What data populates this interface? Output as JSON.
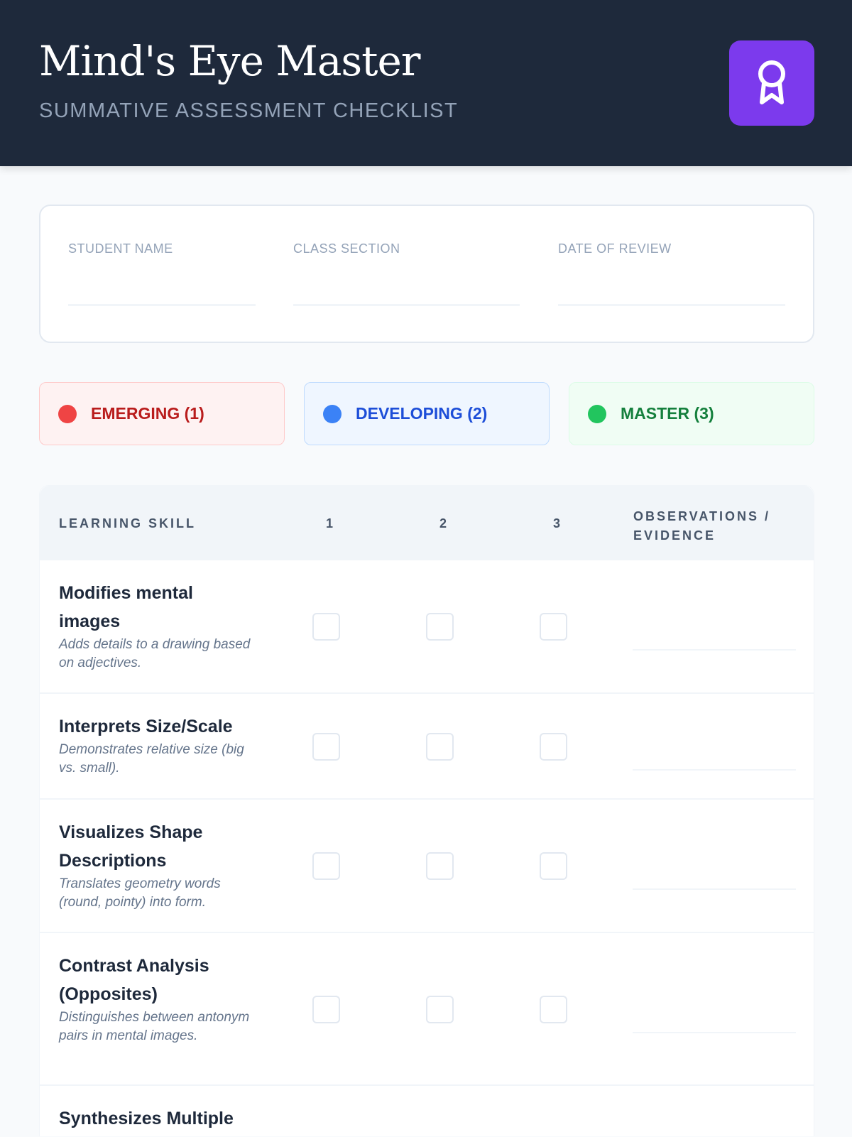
{
  "header": {
    "title": "Mind's Eye Master",
    "subtitle": "SUMMATIVE ASSESSMENT CHECKLIST",
    "badge_icon": "award-ribbon-icon",
    "accent": "#7c3aed"
  },
  "info": {
    "fields": [
      {
        "label": "STUDENT NAME",
        "value": ""
      },
      {
        "label": "CLASS SECTION",
        "value": ""
      },
      {
        "label": "DATE OF REVIEW",
        "value": ""
      }
    ]
  },
  "legend": [
    {
      "label": "EMERGING (1)",
      "color": "#ef4444",
      "text": "#b91c1c",
      "bg": "#fef2f2",
      "border": "#fecaca"
    },
    {
      "label": "DEVELOPING (2)",
      "color": "#3b82f6",
      "text": "#1d4ed8",
      "bg": "#eff6ff",
      "border": "#bfdbfe"
    },
    {
      "label": "MASTER (3)",
      "color": "#22c55e",
      "text": "#15803d",
      "bg": "#f0fdf4",
      "border": "#dcfce7"
    }
  ],
  "table": {
    "headers": {
      "skill": "LEARNING SKILL",
      "c1": "1",
      "c2": "2",
      "c3": "3",
      "obs_line1": "OBSERVATIONS /",
      "obs_line2": "EVIDENCE"
    },
    "rows": [
      {
        "name": "Modifies mental images",
        "desc": "Adds details to a drawing based on adjectives.",
        "checked": [
          false,
          false,
          false
        ]
      },
      {
        "name": "Interprets Size/Scale",
        "desc": "Demonstrates relative size (big vs. small).",
        "checked": [
          false,
          false,
          false
        ]
      },
      {
        "name": "Visualizes Shape Descriptions",
        "desc": "Translates geometry words (round, pointy) into form.",
        "checked": [
          false,
          false,
          false
        ]
      },
      {
        "name": "Contrast Analysis (Opposites)",
        "desc": "Distinguishes between antonym pairs in mental images.",
        "checked": [
          false,
          false,
          false
        ]
      },
      {
        "name": "Synthesizes Multiple",
        "desc": "",
        "checked": [
          false,
          false,
          false
        ]
      }
    ]
  }
}
